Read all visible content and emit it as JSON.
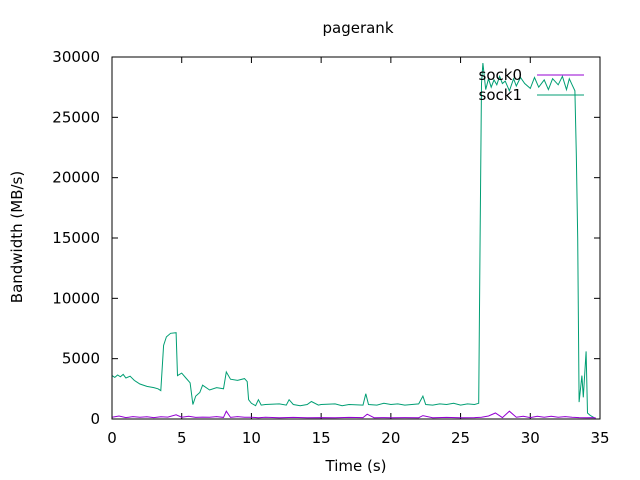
{
  "chart_data": {
    "type": "line",
    "title": "pagerank",
    "xlabel": "Time (s)",
    "ylabel": "Bandwidth (MB/s)",
    "xlim": [
      0,
      35
    ],
    "ylim": [
      0,
      30000
    ],
    "xticks": [
      0,
      5,
      10,
      15,
      20,
      25,
      30,
      35
    ],
    "yticks": [
      0,
      5000,
      10000,
      15000,
      20000,
      25000,
      30000
    ],
    "grid": false,
    "legend": "top-right",
    "series": [
      {
        "name": "sock0",
        "color": "#9400d3",
        "points": [
          [
            0,
            150
          ],
          [
            0.5,
            250
          ],
          [
            1,
            120
          ],
          [
            1.5,
            200
          ],
          [
            2,
            150
          ],
          [
            2.5,
            180
          ],
          [
            3,
            120
          ],
          [
            3.5,
            180
          ],
          [
            4,
            160
          ],
          [
            4.6,
            350
          ],
          [
            5,
            150
          ],
          [
            5.5,
            220
          ],
          [
            6,
            130
          ],
          [
            6.5,
            160
          ],
          [
            7,
            150
          ],
          [
            7.5,
            200
          ],
          [
            8,
            130
          ],
          [
            8.2,
            650
          ],
          [
            8.5,
            130
          ],
          [
            9,
            200
          ],
          [
            9.5,
            140
          ],
          [
            10,
            150
          ],
          [
            10.5,
            100
          ],
          [
            11,
            150
          ],
          [
            12,
            100
          ],
          [
            13,
            130
          ],
          [
            14,
            100
          ],
          [
            15,
            120
          ],
          [
            16,
            100
          ],
          [
            17,
            130
          ],
          [
            18,
            120
          ],
          [
            18.3,
            400
          ],
          [
            18.8,
            110
          ],
          [
            19.5,
            120
          ],
          [
            20,
            100
          ],
          [
            21,
            120
          ],
          [
            22,
            110
          ],
          [
            22.3,
            280
          ],
          [
            23,
            110
          ],
          [
            24,
            130
          ],
          [
            25,
            110
          ],
          [
            26,
            120
          ],
          [
            26.5,
            150
          ],
          [
            27,
            250
          ],
          [
            27.5,
            500
          ],
          [
            28,
            120
          ],
          [
            28.5,
            650
          ],
          [
            29,
            150
          ],
          [
            29.5,
            230
          ],
          [
            30,
            120
          ],
          [
            30.5,
            230
          ],
          [
            31,
            140
          ],
          [
            31.5,
            220
          ],
          [
            32,
            150
          ],
          [
            32.5,
            200
          ],
          [
            33,
            150
          ],
          [
            33.5,
            120
          ],
          [
            34,
            100
          ],
          [
            34.5,
            120
          ],
          [
            34.7,
            80
          ]
        ]
      },
      {
        "name": "sock1",
        "color": "#009e73",
        "points": [
          [
            0,
            3600
          ],
          [
            0.2,
            3450
          ],
          [
            0.4,
            3650
          ],
          [
            0.6,
            3500
          ],
          [
            0.8,
            3700
          ],
          [
            1,
            3400
          ],
          [
            1.3,
            3550
          ],
          [
            1.6,
            3200
          ],
          [
            2,
            2900
          ],
          [
            2.5,
            2700
          ],
          [
            3,
            2600
          ],
          [
            3.3,
            2500
          ],
          [
            3.5,
            2350
          ],
          [
            3.7,
            6100
          ],
          [
            3.9,
            6800
          ],
          [
            4.2,
            7100
          ],
          [
            4.6,
            7150
          ],
          [
            4.7,
            3600
          ],
          [
            5,
            3800
          ],
          [
            5.3,
            3400
          ],
          [
            5.6,
            3000
          ],
          [
            5.8,
            1200
          ],
          [
            6,
            1900
          ],
          [
            6.3,
            2200
          ],
          [
            6.5,
            2800
          ],
          [
            7,
            2400
          ],
          [
            7.5,
            2600
          ],
          [
            8,
            2500
          ],
          [
            8.2,
            3900
          ],
          [
            8.5,
            3300
          ],
          [
            9,
            3200
          ],
          [
            9.5,
            3350
          ],
          [
            9.7,
            3100
          ],
          [
            9.8,
            1600
          ],
          [
            10,
            1300
          ],
          [
            10.3,
            1100
          ],
          [
            10.5,
            1600
          ],
          [
            10.7,
            1150
          ],
          [
            11,
            1200
          ],
          [
            12,
            1250
          ],
          [
            12.5,
            1150
          ],
          [
            12.7,
            1600
          ],
          [
            13,
            1200
          ],
          [
            13.5,
            1100
          ],
          [
            14,
            1200
          ],
          [
            14.3,
            1450
          ],
          [
            14.8,
            1150
          ],
          [
            15,
            1200
          ],
          [
            16,
            1250
          ],
          [
            16.5,
            1100
          ],
          [
            17,
            1200
          ],
          [
            18,
            1150
          ],
          [
            18.2,
            2100
          ],
          [
            18.4,
            1200
          ],
          [
            19,
            1150
          ],
          [
            19.5,
            1300
          ],
          [
            20,
            1200
          ],
          [
            20.5,
            1250
          ],
          [
            21,
            1150
          ],
          [
            21.5,
            1200
          ],
          [
            22,
            1250
          ],
          [
            22.3,
            1900
          ],
          [
            22.5,
            1200
          ],
          [
            23,
            1150
          ],
          [
            23.5,
            1250
          ],
          [
            24,
            1200
          ],
          [
            24.5,
            1300
          ],
          [
            25,
            1150
          ],
          [
            25.5,
            1250
          ],
          [
            26,
            1200
          ],
          [
            26.3,
            1300
          ],
          [
            26.4,
            15000
          ],
          [
            26.5,
            27800
          ],
          [
            26.6,
            29500
          ],
          [
            26.8,
            27300
          ],
          [
            27,
            28200
          ],
          [
            27.2,
            27500
          ],
          [
            27.4,
            28100
          ],
          [
            27.6,
            27700
          ],
          [
            27.8,
            28400
          ],
          [
            28,
            27800
          ],
          [
            28.2,
            28000
          ],
          [
            28.5,
            27200
          ],
          [
            28.8,
            28200
          ],
          [
            29,
            27600
          ],
          [
            29.3,
            28300
          ],
          [
            29.6,
            27800
          ],
          [
            30,
            27400
          ],
          [
            30.3,
            28300
          ],
          [
            30.6,
            27500
          ],
          [
            31,
            28100
          ],
          [
            31.3,
            27300
          ],
          [
            31.6,
            28200
          ],
          [
            32,
            27700
          ],
          [
            32.3,
            28400
          ],
          [
            32.6,
            27300
          ],
          [
            32.8,
            28200
          ],
          [
            33,
            27700
          ],
          [
            33.2,
            27200
          ],
          [
            33.3,
            22000
          ],
          [
            33.4,
            15000
          ],
          [
            33.5,
            1400
          ],
          [
            33.7,
            3600
          ],
          [
            33.8,
            1800
          ],
          [
            34,
            5600
          ],
          [
            34.1,
            500
          ],
          [
            34.3,
            300
          ],
          [
            34.6,
            100
          ]
        ]
      }
    ]
  }
}
